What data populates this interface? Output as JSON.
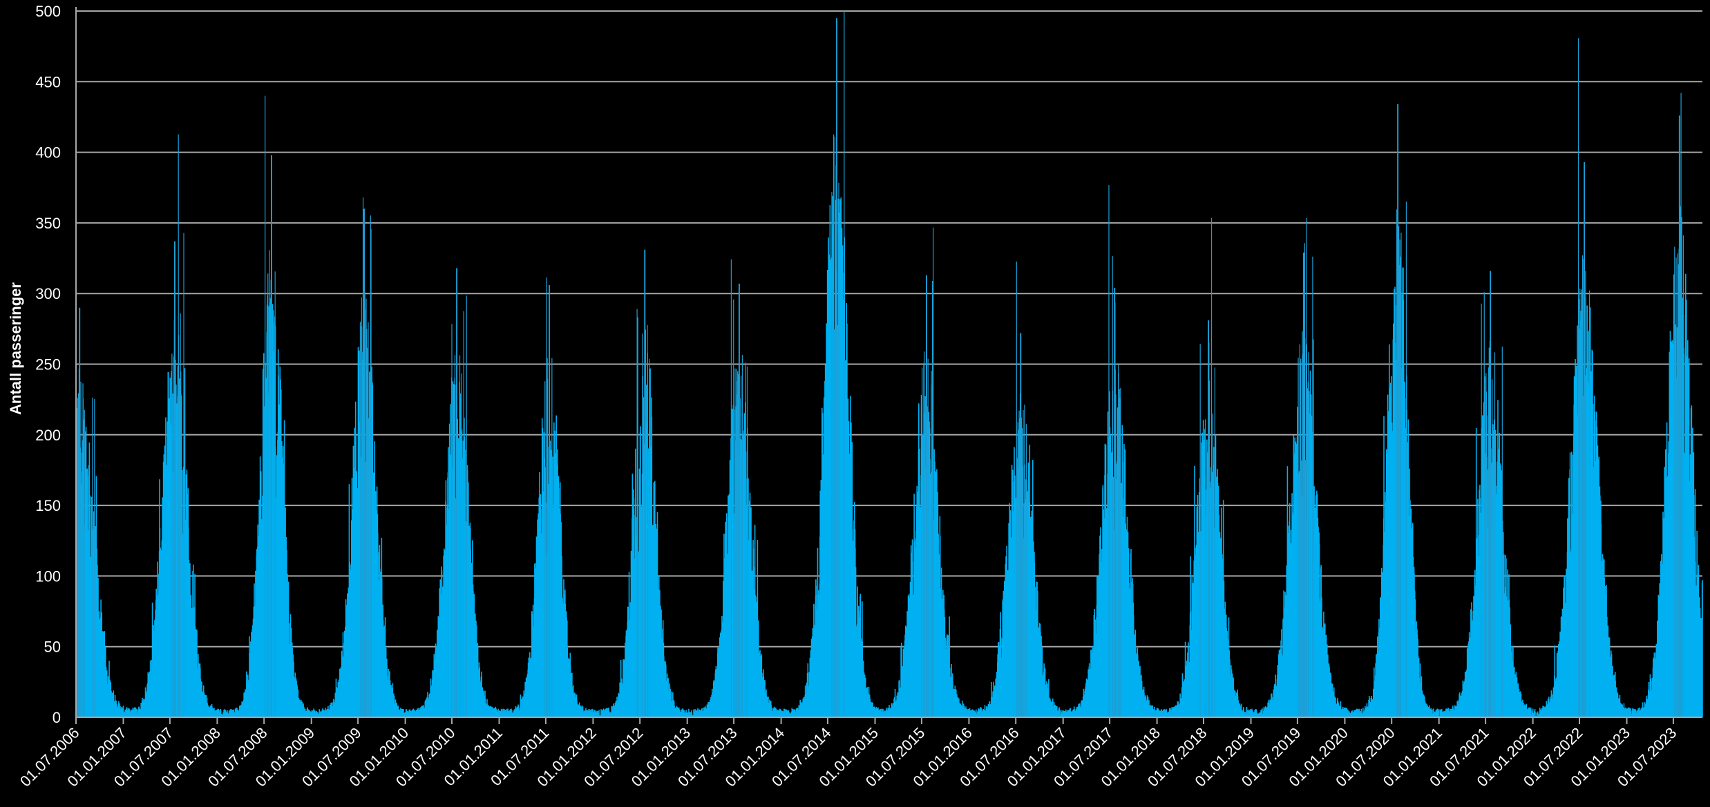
{
  "chart_data": {
    "type": "bar",
    "title": "",
    "xlabel": "",
    "ylabel": "Antall passeringer",
    "ylim": [
      0,
      500
    ],
    "y_ticks": [
      0,
      50,
      100,
      150,
      200,
      250,
      300,
      350,
      400,
      450,
      500
    ],
    "x_range": [
      "2006-07-01",
      "2023-10-22"
    ],
    "grid": true,
    "legend": "none",
    "colors": {
      "background": "#000000",
      "bars": "#00b0f0",
      "grid": "#a6a6a6",
      "text": "#ffffff"
    },
    "x_tick_labels": [
      "01.07.2006",
      "01.01.2007",
      "01.07.2007",
      "01.01.2008",
      "01.07.2008",
      "01.01.2009",
      "01.07.2009",
      "01.01.2010",
      "01.07.2010",
      "01.01.2011",
      "01.07.2011",
      "01.01.2012",
      "01.07.2012",
      "01.01.2013",
      "01.07.2013",
      "01.01.2014",
      "01.07.2014",
      "01.01.2015",
      "01.07.2015",
      "01.01.2016",
      "01.07.2016",
      "01.01.2017",
      "01.07.2017",
      "01.01.2018",
      "01.07.2018",
      "01.01.2019",
      "01.07.2019",
      "01.01.2020",
      "01.07.2020",
      "01.01.2021",
      "01.07.2021",
      "01.01.2022",
      "01.07.2022",
      "01.01.2023",
      "01.07.2023"
    ],
    "seasonal_peaks": [
      {
        "peak_date": "2006-07-15",
        "peak_value": 290,
        "width_days": 55
      },
      {
        "peak_date": "2007-07-20",
        "peak_value": 337,
        "width_days": 48
      },
      {
        "peak_date": "2008-07-30",
        "peak_value": 398,
        "width_days": 42
      },
      {
        "peak_date": "2009-07-25",
        "peak_value": 360,
        "width_days": 45
      },
      {
        "peak_date": "2010-07-20",
        "peak_value": 318,
        "width_days": 45
      },
      {
        "peak_date": "2011-07-15",
        "peak_value": 306,
        "width_days": 42
      },
      {
        "peak_date": "2012-07-20",
        "peak_value": 331,
        "width_days": 42
      },
      {
        "peak_date": "2013-07-22",
        "peak_value": 307,
        "width_days": 45
      },
      {
        "peak_date": "2014-08-05",
        "peak_value": 495,
        "width_days": 48
      },
      {
        "peak_date": "2015-07-20",
        "peak_value": 313,
        "width_days": 48
      },
      {
        "peak_date": "2016-07-20",
        "peak_value": 272,
        "width_days": 48
      },
      {
        "peak_date": "2017-07-20",
        "peak_value": 304,
        "width_days": 50
      },
      {
        "peak_date": "2018-07-20",
        "peak_value": 281,
        "width_days": 45
      },
      {
        "peak_date": "2019-07-25",
        "peak_value": 329,
        "width_days": 50
      },
      {
        "peak_date": "2020-07-25",
        "peak_value": 434,
        "width_days": 40
      },
      {
        "peak_date": "2021-07-20",
        "peak_value": 316,
        "width_days": 48
      },
      {
        "peak_date": "2022-07-20",
        "peak_value": 393,
        "width_days": 52
      },
      {
        "peak_date": "2023-07-25",
        "peak_value": 426,
        "width_days": 48
      }
    ]
  }
}
